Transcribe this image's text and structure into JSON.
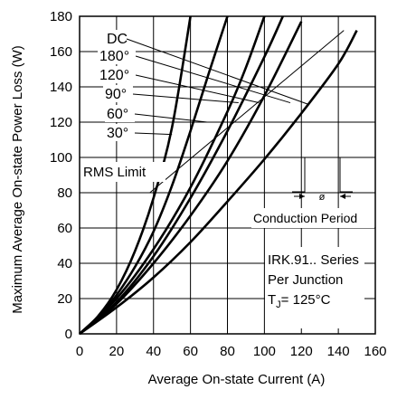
{
  "chart_data": {
    "type": "line",
    "title": "",
    "xlabel": "Average On-state Current (A)",
    "ylabel": "Maximum Average On-state Power Loss (W)",
    "xlim": [
      0,
      160
    ],
    "ylim": [
      0,
      180
    ],
    "xticks": [
      0,
      20,
      40,
      60,
      80,
      100,
      120,
      140,
      160
    ],
    "yticks": [
      0,
      20,
      40,
      60,
      80,
      100,
      120,
      140,
      160,
      180
    ],
    "grid": true,
    "series": [
      {
        "name": "30°",
        "x": [
          0,
          10,
          20,
          30,
          40,
          50,
          60
        ],
        "y": [
          0,
          10,
          25,
          47,
          77,
          117,
          180
        ]
      },
      {
        "name": "60°",
        "x": [
          0,
          10,
          20,
          30,
          40,
          50,
          60,
          70,
          80
        ],
        "y": [
          0,
          9,
          22,
          38,
          58,
          84,
          115,
          148,
          180
        ]
      },
      {
        "name": "90°",
        "x": [
          0,
          20,
          40,
          60,
          80,
          90,
          100
        ],
        "y": [
          0,
          20,
          48,
          83,
          126,
          151,
          180
        ]
      },
      {
        "name": "120°",
        "x": [
          0,
          20,
          40,
          60,
          80,
          100,
          110
        ],
        "y": [
          0,
          18,
          44,
          77,
          115,
          157,
          180
        ]
      },
      {
        "name": "180°",
        "x": [
          0,
          20,
          40,
          60,
          80,
          100,
          120
        ],
        "y": [
          0,
          17,
          40,
          67,
          98,
          135,
          177
        ]
      },
      {
        "name": "DC",
        "x": [
          0,
          20,
          40,
          60,
          80,
          100,
          120,
          140,
          150
        ],
        "y": [
          0,
          15,
          32,
          52,
          75,
          99,
          125,
          153,
          172
        ]
      }
    ],
    "series_labels": [
      "DC",
      "180°",
      "120°",
      "90°",
      "60°",
      "30°"
    ],
    "annotations": {
      "rms_limit": "RMS Limit",
      "conduction_period": "Conduction Period",
      "angle_symbol": "ø",
      "info_lines": [
        "IRK.91.. Series",
        "Per Junction"
      ],
      "tj_prefix": "T",
      "tj_subscript": "J",
      "tj_value": "= 125°C"
    }
  }
}
